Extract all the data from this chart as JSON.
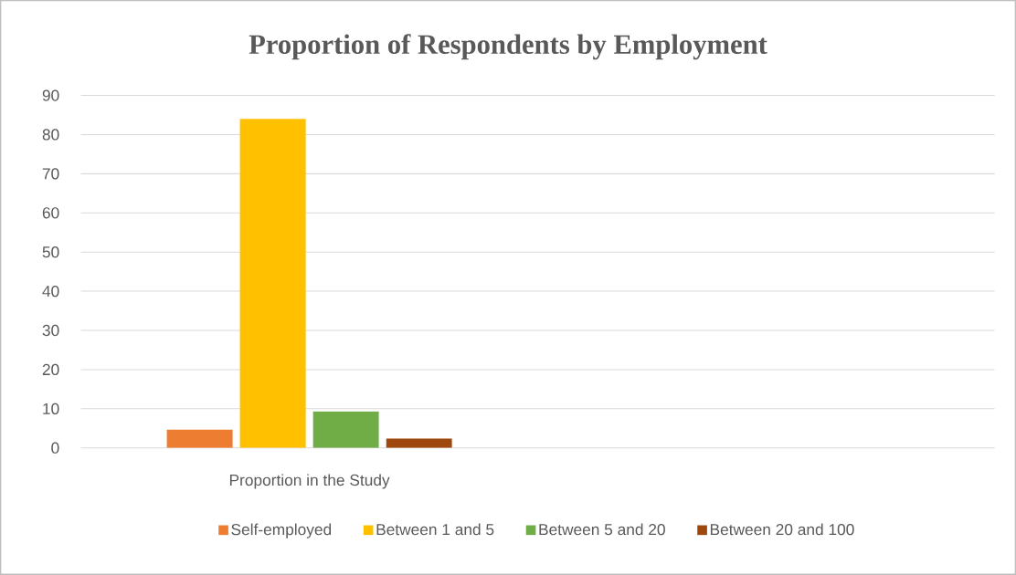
{
  "chart_data": {
    "type": "bar",
    "title": "Proportion of Respondents by Employment",
    "categories": [
      "Proportion in the Study",
      null
    ],
    "series": [
      {
        "name": "Self-employed",
        "color": "#ed7d31",
        "values": [
          4.7,
          null
        ]
      },
      {
        "name": "Between 1 and 5",
        "color": "#ffc000",
        "values": [
          84,
          null
        ]
      },
      {
        "name": "Between 5 and 20",
        "color": "#70ad47",
        "values": [
          9.3,
          null
        ]
      },
      {
        "name": "Between 20 and 100",
        "color": "#9e480e",
        "values": [
          2.4,
          null
        ]
      }
    ],
    "ylim": [
      0,
      90
    ],
    "yticks": [
      0,
      10,
      20,
      30,
      40,
      50,
      60,
      70,
      80,
      90
    ],
    "grid": "y",
    "legend": "bottom"
  }
}
